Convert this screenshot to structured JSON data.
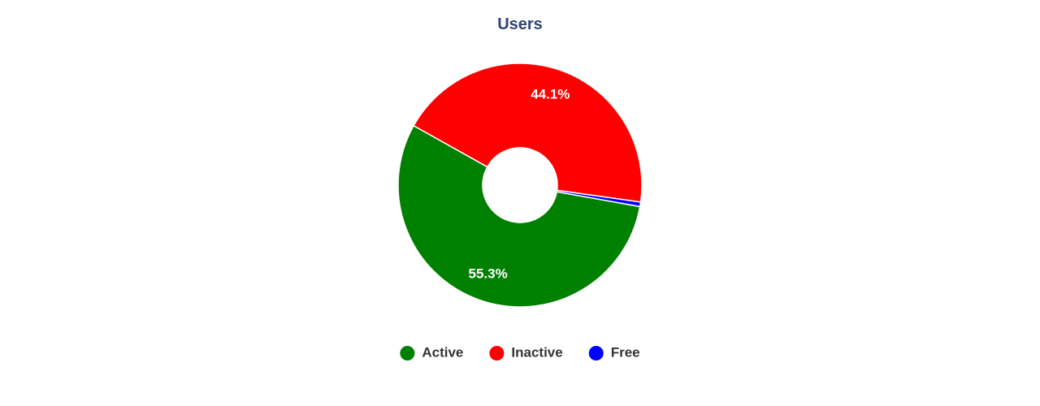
{
  "colors": {
    "title": "#2f4574",
    "label_text": "#ffffff",
    "legend_text": "#333333",
    "slice_border": "#ffffff"
  },
  "chart_data": {
    "type": "pie",
    "variant": "donut",
    "title": "Users",
    "categories": [
      "Active",
      "Inactive",
      "Free"
    ],
    "values": [
      55.3,
      44.1,
      0.6
    ],
    "value_labels": [
      "55.3%",
      "44.1%",
      ""
    ],
    "colors": [
      "#008000",
      "#ff0000",
      "#0000ff"
    ],
    "legend": {
      "position": "bottom-center",
      "marker": "circle"
    }
  }
}
